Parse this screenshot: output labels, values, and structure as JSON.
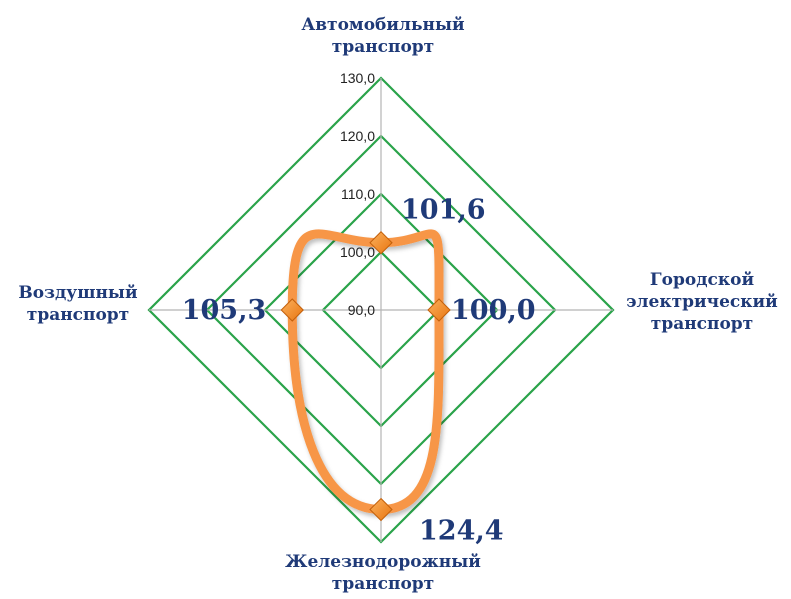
{
  "chart_data": {
    "type": "radar",
    "categories": [
      [
        "Автомобильный",
        "транспорт"
      ],
      [
        "Городской",
        "электрический",
        "транспорт"
      ],
      [
        "Железнодорожный",
        "транспорт"
      ],
      [
        "Воздушный",
        "транспорт"
      ]
    ],
    "series": [
      {
        "values": [
          101.6,
          100.0,
          124.4,
          105.3
        ],
        "value_labels": [
          "101,6",
          "100,0",
          "124,4",
          "105,3"
        ],
        "color": "#f79646",
        "marker_color": "#f6861f"
      }
    ],
    "ticks": [
      90,
      100,
      110,
      120,
      130
    ],
    "tick_labels": [
      "90,0",
      "100,0",
      "110,0",
      "120,0",
      "130,0"
    ],
    "rlim": [
      90,
      130
    ],
    "grid_color": "#2aa34a",
    "axis_color": "#b5b5b5",
    "label_color": "#1f3a78"
  }
}
